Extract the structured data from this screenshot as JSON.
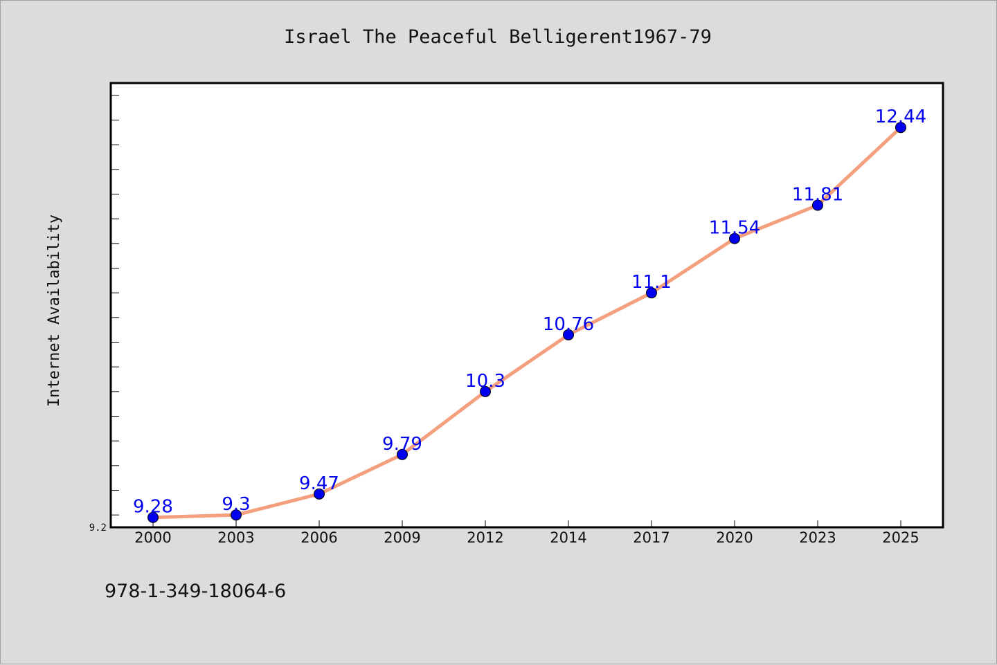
{
  "chart_data": {
    "type": "line",
    "title": "Israel The Peaceful Belligerent1967-79",
    "xlabel": "",
    "ylabel": "Internet Availability",
    "categories": [
      "2000",
      "2003",
      "2006",
      "2009",
      "2012",
      "2014",
      "2017",
      "2020",
      "2023",
      "2025"
    ],
    "values": [
      9.28,
      9.3,
      9.47,
      9.79,
      10.3,
      10.76,
      11.1,
      11.54,
      11.81,
      12.44
    ],
    "data_labels": [
      "9.28",
      "9.3",
      "9.47",
      "9.79",
      "10.3",
      "10.76",
      "11.1",
      "11.54",
      "11.81",
      "12.44"
    ],
    "ytick_labels": [
      "9.2"
    ],
    "ylim": [
      9.2,
      12.8
    ],
    "grid": false,
    "line_color": "#f4a07e",
    "marker_color": "#0000ee",
    "label_color": "#0000ee"
  },
  "footer": {
    "isbn": "978-1-349-18064-6"
  }
}
